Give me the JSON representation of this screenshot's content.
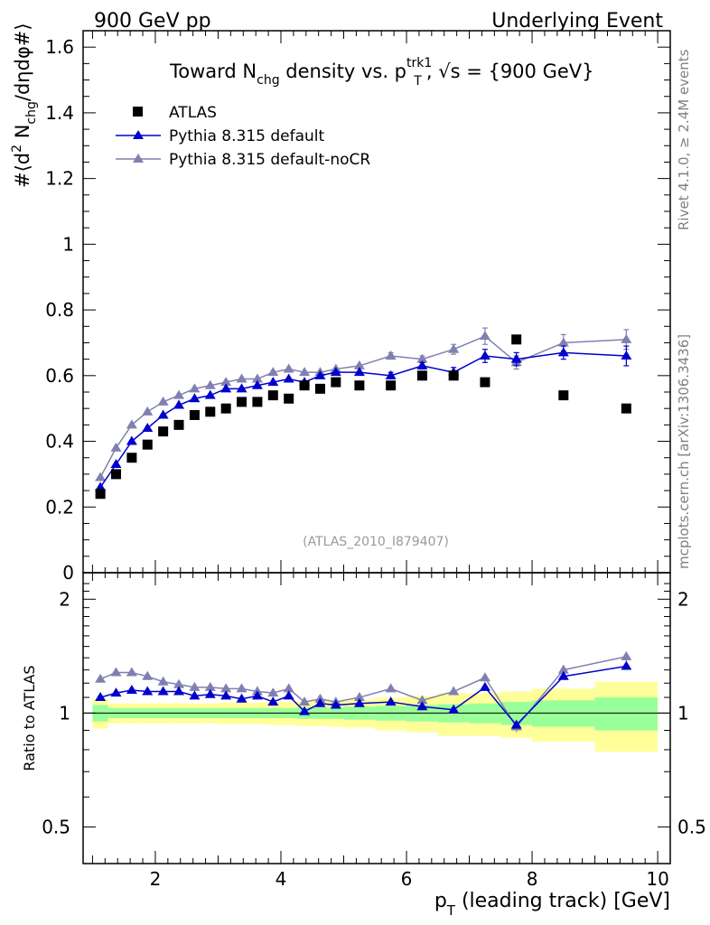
{
  "header": {
    "left": "900 GeV pp",
    "right": "Underlying Event"
  },
  "side": {
    "rivet": "Rivet 4.1.0, ≥ 2.4M events",
    "mcplots": "mcplots.cern.ch [arXiv:1306.3436]"
  },
  "chart_data": {
    "type": "scatter",
    "title": "Toward N_chg density vs. p_T^trk1, √s = {900 GeV}",
    "title_parts": {
      "a": "Toward N",
      "a_sub": "chg",
      "b": " density vs. p",
      "b_sup": "trk1",
      "b_sub": "T",
      "c": ", √s = {900 GeV}"
    },
    "analysis_id": "(ATLAS_2010_I879407)",
    "xlabel": "p_T (leading track) [GeV]",
    "xlabel_parts": {
      "a": "p",
      "sub": "T",
      "b": " (leading track) [GeV]"
    },
    "ylabel": "#⟨d² N_chg/dηdφ#⟩",
    "ylabel_parts": {
      "a": "#⟨d",
      "sup": "2",
      "b": " N",
      "sub": "chg",
      "c": "/dηdφ#⟩"
    },
    "ratio_ylabel": "Ratio to ATLAS",
    "xlim": [
      0.85,
      10.2
    ],
    "ylim": [
      0,
      1.65
    ],
    "ratio_ylim": [
      0.4,
      2.35
    ],
    "x_ticks": [
      2,
      4,
      6,
      8,
      10
    ],
    "y_ticks": [
      0,
      0.2,
      0.4,
      0.6,
      0.8,
      1,
      1.2,
      1.4,
      1.6
    ],
    "y_tick_labels": [
      "0",
      "0.2",
      "0.4",
      "0.6",
      "0.8",
      "1",
      "1.2",
      "1.4",
      "1.6"
    ],
    "ratio_ticks": [
      0.5,
      1,
      2
    ],
    "ratio_tick_labels": [
      "0.5",
      "1",
      "2"
    ],
    "x": [
      1.125,
      1.375,
      1.625,
      1.875,
      2.125,
      2.375,
      2.625,
      2.875,
      3.125,
      3.375,
      3.625,
      3.875,
      4.125,
      4.375,
      4.625,
      4.875,
      5.25,
      5.75,
      6.25,
      6.75,
      7.25,
      7.75,
      8.5,
      9.5
    ],
    "x_edges": [
      1.0,
      1.25,
      1.5,
      1.75,
      2.0,
      2.25,
      2.5,
      2.75,
      3.0,
      3.25,
      3.5,
      3.75,
      4.0,
      4.25,
      4.5,
      4.75,
      5.0,
      5.5,
      6.0,
      6.5,
      7.0,
      7.5,
      8.0,
      9.0,
      10.0
    ],
    "series": [
      {
        "name": "ATLAS",
        "color": "#000000",
        "marker": "square",
        "values": [
          0.24,
          0.3,
          0.35,
          0.39,
          0.43,
          0.45,
          0.48,
          0.49,
          0.5,
          0.52,
          0.52,
          0.54,
          0.53,
          0.57,
          0.56,
          0.58,
          0.57,
          0.57,
          0.6,
          0.6,
          0.58,
          0.71,
          0.54,
          0.5
        ]
      },
      {
        "name": "Pythia 8.315 default",
        "color": "#0000cc",
        "marker": "triangle",
        "values": [
          0.26,
          0.33,
          0.4,
          0.44,
          0.48,
          0.51,
          0.53,
          0.54,
          0.56,
          0.56,
          0.57,
          0.58,
          0.59,
          0.58,
          0.6,
          0.61,
          0.61,
          0.6,
          0.63,
          0.61,
          0.66,
          0.65,
          0.67,
          0.66
        ],
        "errors": [
          0,
          0,
          0,
          0,
          0,
          0,
          0,
          0,
          0,
          0,
          0,
          0,
          0,
          0,
          0,
          0,
          0,
          0.01,
          0.01,
          0.015,
          0.02,
          0.02,
          0.02,
          0.03
        ],
        "ratio": [
          1.1,
          1.13,
          1.15,
          1.14,
          1.14,
          1.14,
          1.11,
          1.12,
          1.11,
          1.09,
          1.11,
          1.07,
          1.11,
          1.01,
          1.06,
          1.05,
          1.06,
          1.07,
          1.04,
          1.02,
          1.17,
          0.93,
          1.25,
          1.33
        ]
      },
      {
        "name": "Pythia 8.315 default-noCR",
        "color": "#8080b0",
        "marker": "triangle",
        "values": [
          0.29,
          0.38,
          0.45,
          0.49,
          0.52,
          0.54,
          0.56,
          0.57,
          0.58,
          0.59,
          0.59,
          0.61,
          0.62,
          0.61,
          0.61,
          0.62,
          0.63,
          0.66,
          0.65,
          0.68,
          0.72,
          0.64,
          0.7,
          0.71
        ],
        "errors": [
          0,
          0,
          0,
          0,
          0,
          0,
          0,
          0,
          0,
          0,
          0,
          0,
          0,
          0,
          0,
          0,
          0,
          0.01,
          0.01,
          0.015,
          0.025,
          0.02,
          0.025,
          0.03
        ],
        "ratio": [
          1.23,
          1.28,
          1.28,
          1.25,
          1.21,
          1.19,
          1.17,
          1.17,
          1.16,
          1.16,
          1.14,
          1.13,
          1.16,
          1.07,
          1.09,
          1.07,
          1.1,
          1.16,
          1.08,
          1.14,
          1.24,
          0.92,
          1.3,
          1.41
        ],
        "ratio_errors": [
          0,
          0,
          0,
          0,
          0,
          0,
          0,
          0,
          0,
          0,
          0,
          0,
          0,
          0,
          0,
          0,
          0,
          0.02,
          0.02,
          0.02,
          0.03,
          0.03,
          0.03,
          0.04
        ]
      }
    ],
    "ratio_band_green": [
      [
        0.95,
        1.05
      ],
      [
        0.97,
        1.03
      ],
      [
        0.97,
        1.03
      ],
      [
        0.97,
        1.03
      ],
      [
        0.97,
        1.03
      ],
      [
        0.97,
        1.03
      ],
      [
        0.97,
        1.03
      ],
      [
        0.97,
        1.03
      ],
      [
        0.97,
        1.03
      ],
      [
        0.97,
        1.03
      ],
      [
        0.97,
        1.03
      ],
      [
        0.97,
        1.03
      ],
      [
        0.97,
        1.03
      ],
      [
        0.965,
        1.035
      ],
      [
        0.965,
        1.035
      ],
      [
        0.965,
        1.035
      ],
      [
        0.96,
        1.04
      ],
      [
        0.955,
        1.045
      ],
      [
        0.95,
        1.05
      ],
      [
        0.945,
        1.055
      ],
      [
        0.94,
        1.06
      ],
      [
        0.93,
        1.07
      ],
      [
        0.92,
        1.08
      ],
      [
        0.9,
        1.1
      ]
    ],
    "ratio_band_yellow": [
      [
        0.91,
        1.09
      ],
      [
        0.94,
        1.06
      ],
      [
        0.94,
        1.06
      ],
      [
        0.94,
        1.06
      ],
      [
        0.94,
        1.06
      ],
      [
        0.94,
        1.06
      ],
      [
        0.94,
        1.06
      ],
      [
        0.94,
        1.06
      ],
      [
        0.935,
        1.065
      ],
      [
        0.935,
        1.065
      ],
      [
        0.935,
        1.065
      ],
      [
        0.93,
        1.07
      ],
      [
        0.93,
        1.07
      ],
      [
        0.925,
        1.075
      ],
      [
        0.925,
        1.075
      ],
      [
        0.92,
        1.08
      ],
      [
        0.915,
        1.085
      ],
      [
        0.9,
        1.1
      ],
      [
        0.89,
        1.11
      ],
      [
        0.87,
        1.13
      ],
      [
        0.87,
        1.13
      ],
      [
        0.86,
        1.14
      ],
      [
        0.84,
        1.16
      ],
      [
        0.79,
        1.21
      ]
    ]
  }
}
